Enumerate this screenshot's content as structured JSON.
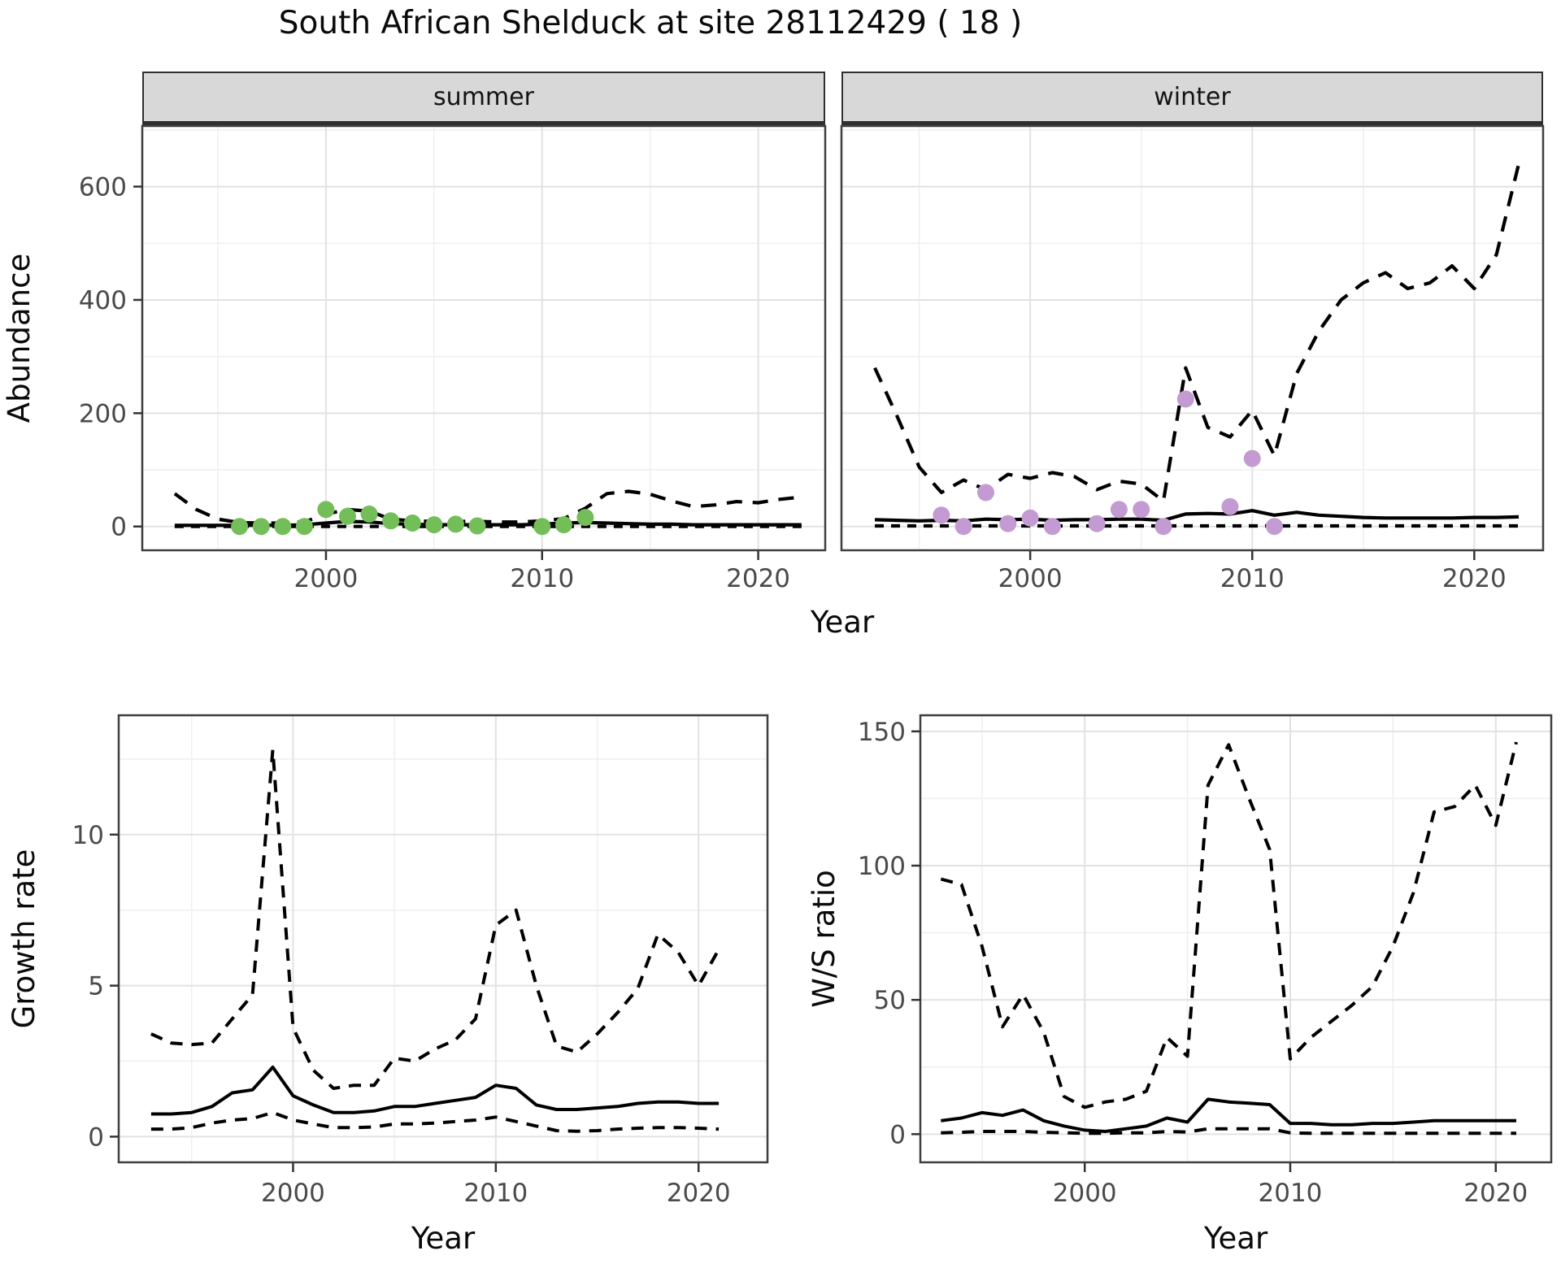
{
  "title": "South African Shelduck at site 28112429 ( 18 )",
  "facets": [
    "summer",
    "winter"
  ],
  "colors": {
    "summer_points": "#74be59",
    "winter_points": "#c39bd2",
    "line": "#000000",
    "grid_major": "#e2e2e2",
    "grid_minor": "#efefef",
    "panel_border": "#3f3f3f",
    "strip_bg": "#d8d8d8",
    "tick_text": "#4a4a4a"
  },
  "chart_data": [
    {
      "type": "line",
      "xlabel": "Year",
      "ylabel": "Abundance",
      "xlim": [
        1991.5,
        2023.1
      ],
      "ylim": [
        -42,
        707
      ],
      "xticks": [
        2000,
        2010,
        2020
      ],
      "xminor": [
        1995,
        2005,
        2015
      ],
      "yticks": [
        0,
        200,
        400,
        600
      ],
      "yminor": [
        100,
        300,
        500,
        700
      ],
      "years": [
        1993,
        1994,
        1995,
        1996,
        1997,
        1998,
        1999,
        2000,
        2001,
        2002,
        2003,
        2004,
        2005,
        2006,
        2007,
        2008,
        2009,
        2010,
        2011,
        2012,
        2013,
        2014,
        2015,
        2016,
        2017,
        2018,
        2019,
        2020,
        2021,
        2022
      ],
      "facets": [
        {
          "label": "summer",
          "series": [
            {
              "name": "upper CI",
              "linetype": "dashed",
              "dash": "long",
              "values": [
                58,
                30,
                13,
                7,
                6,
                6,
                8,
                22,
                30,
                27,
                13,
                10,
                9,
                9,
                9,
                8,
                8,
                10,
                14,
                32,
                58,
                62,
                57,
                45,
                35,
                38,
                44,
                42,
                48,
                52
              ]
            },
            {
              "name": "lower CI",
              "linetype": "dashed",
              "dash": "short",
              "values": [
                0,
                0,
                0,
                0,
                0,
                0,
                0,
                0,
                0,
                0,
                0,
                0,
                0,
                0,
                0,
                0,
                0,
                0,
                0,
                0,
                0,
                0,
                0,
                0,
                0,
                0,
                0,
                0,
                0,
                0
              ]
            },
            {
              "name": "median",
              "linetype": "solid",
              "values": [
                2,
                2,
                2,
                2,
                2,
                2,
                3,
                6,
                9,
                8,
                5,
                4,
                3,
                3,
                3,
                3,
                3,
                4,
                6,
                7,
                6,
                5,
                4,
                4,
                3,
                3,
                3,
                3,
                3,
                3
              ]
            }
          ],
          "points": {
            "name": "summer-count",
            "color_key": "summer_points",
            "x": [
              1996,
              1997,
              1998,
              1999,
              2000,
              2001,
              2002,
              2003,
              2004,
              2005,
              2006,
              2007,
              2010,
              2011,
              2012
            ],
            "y": [
              0,
              0,
              0,
              0,
              30,
              18,
              22,
              10,
              6,
              3,
              4,
              1,
              0,
              3,
              16
            ]
          }
        },
        {
          "label": "winter",
          "series": [
            {
              "name": "upper CI",
              "linetype": "dashed",
              "dash": "long",
              "values": [
                280,
                195,
                105,
                60,
                82,
                65,
                92,
                85,
                95,
                88,
                65,
                80,
                75,
                45,
                280,
                175,
                158,
                205,
                125,
                270,
                345,
                400,
                430,
                448,
                420,
                430,
                460,
                420,
                480,
                640
              ]
            },
            {
              "name": "lower CI",
              "linetype": "dashed",
              "dash": "short",
              "values": [
                1,
                1,
                1,
                1,
                1,
                1,
                1,
                1,
                1,
                1,
                1,
                1,
                1,
                1,
                1,
                1,
                1,
                1,
                1,
                1,
                1,
                1,
                1,
                1,
                1,
                1,
                1,
                1,
                1,
                1
              ]
            },
            {
              "name": "median",
              "linetype": "solid",
              "values": [
                12,
                11,
                10,
                11,
                10,
                13,
                12,
                13,
                11,
                12,
                12,
                13,
                13,
                11,
                22,
                23,
                22,
                28,
                20,
                25,
                20,
                18,
                16,
                15,
                15,
                15,
                15,
                16,
                16,
                17
              ]
            }
          ],
          "points": {
            "name": "winter-count",
            "color_key": "winter_points",
            "x": [
              1996,
              1997,
              1998,
              1999,
              2000,
              2001,
              2003,
              2004,
              2005,
              2006,
              2007,
              2009,
              2010,
              2011
            ],
            "y": [
              20,
              0,
              60,
              5,
              15,
              0,
              5,
              30,
              30,
              0,
              225,
              35,
              120,
              0
            ]
          }
        }
      ]
    },
    {
      "type": "line",
      "xlabel": "Year",
      "ylabel": "Growth rate",
      "xlim": [
        1991.4,
        2023.4
      ],
      "ylim": [
        -0.85,
        13.95
      ],
      "xticks": [
        2000,
        2010,
        2020
      ],
      "xminor": [
        1995,
        2005,
        2015
      ],
      "yticks": [
        0,
        5,
        10
      ],
      "yminor": [
        2.5,
        7.5,
        12.5
      ],
      "years": [
        1993,
        1994,
        1995,
        1996,
        1997,
        1998,
        1999,
        2000,
        2001,
        2002,
        2003,
        2004,
        2005,
        2006,
        2007,
        2008,
        2009,
        2010,
        2011,
        2012,
        2013,
        2014,
        2015,
        2016,
        2017,
        2018,
        2019,
        2020,
        2021
      ],
      "series": [
        {
          "name": "upper CI",
          "linetype": "dashed",
          "dash": "medium",
          "values": [
            3.4,
            3.1,
            3.05,
            3.1,
            3.9,
            4.7,
            12.8,
            3.6,
            2.2,
            1.6,
            1.7,
            1.7,
            2.6,
            2.5,
            2.9,
            3.2,
            3.9,
            7.0,
            7.5,
            5.0,
            3.0,
            2.8,
            3.4,
            4.1,
            4.9,
            6.7,
            6.1,
            5.0,
            6.2
          ]
        },
        {
          "name": "lower CI",
          "linetype": "dashed",
          "dash": "medium",
          "values": [
            0.25,
            0.25,
            0.3,
            0.45,
            0.55,
            0.6,
            0.8,
            0.55,
            0.42,
            0.3,
            0.3,
            0.32,
            0.42,
            0.42,
            0.45,
            0.5,
            0.55,
            0.65,
            0.5,
            0.35,
            0.2,
            0.18,
            0.2,
            0.25,
            0.28,
            0.3,
            0.3,
            0.28,
            0.25
          ]
        },
        {
          "name": "median",
          "linetype": "solid",
          "values": [
            0.75,
            0.75,
            0.8,
            1.0,
            1.45,
            1.55,
            2.3,
            1.35,
            1.05,
            0.8,
            0.8,
            0.85,
            1.0,
            1.0,
            1.1,
            1.2,
            1.3,
            1.7,
            1.6,
            1.05,
            0.9,
            0.9,
            0.95,
            1.0,
            1.1,
            1.15,
            1.15,
            1.1,
            1.1
          ]
        }
      ]
    },
    {
      "type": "line",
      "xlabel": "Year",
      "ylabel": "W/S ratio",
      "xlim": [
        1992.0,
        2022.7
      ],
      "ylim": [
        -10.5,
        156
      ],
      "xticks": [
        2000,
        2010,
        2020
      ],
      "xminor": [
        1995,
        2005,
        2015
      ],
      "yticks": [
        0,
        50,
        100,
        150
      ],
      "yminor": [
        25,
        75,
        125
      ],
      "years": [
        1993,
        1994,
        1995,
        1996,
        1997,
        1998,
        1999,
        2000,
        2001,
        2002,
        2003,
        2004,
        2005,
        2006,
        2007,
        2008,
        2009,
        2010,
        2011,
        2012,
        2013,
        2014,
        2015,
        2016,
        2017,
        2018,
        2019,
        2020,
        2021
      ],
      "series": [
        {
          "name": "upper CI",
          "linetype": "dashed",
          "dash": "medium",
          "values": [
            95,
            93,
            70,
            40,
            52,
            38,
            14,
            10,
            12,
            13,
            16,
            36,
            29,
            130,
            145,
            125,
            106,
            28,
            36,
            42,
            48,
            55,
            70,
            90,
            120,
            122,
            130,
            115,
            146
          ]
        },
        {
          "name": "lower CI",
          "linetype": "dashed",
          "dash": "medium",
          "values": [
            0.5,
            0.7,
            1,
            1,
            1,
            0.7,
            0.5,
            0.3,
            0.3,
            0.5,
            0.5,
            1,
            0.8,
            2,
            2,
            2,
            2,
            0.5,
            0.3,
            0.3,
            0.3,
            0.3,
            0.3,
            0.3,
            0.3,
            0.3,
            0.3,
            0.3,
            0.3
          ]
        },
        {
          "name": "median",
          "linetype": "solid",
          "values": [
            5,
            6,
            8,
            7,
            9,
            5,
            3,
            1.5,
            1,
            2,
            3,
            6,
            4.5,
            13,
            12,
            11.5,
            11,
            4,
            4,
            3.5,
            3.5,
            4,
            4,
            4.5,
            5,
            5,
            5,
            5,
            5
          ]
        }
      ]
    }
  ]
}
